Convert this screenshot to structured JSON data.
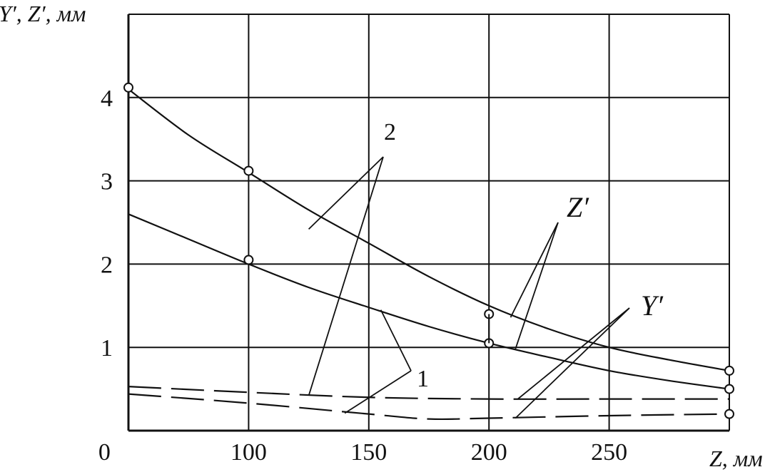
{
  "chart_data": {
    "type": "line",
    "ylabel": "Y′, Z′,  мм",
    "xlabel": "Z,  мм",
    "xlim": [
      50,
      300
    ],
    "ylim": [
      0,
      5
    ],
    "x_ticks": [
      "0",
      "100",
      "150",
      "200",
      "250"
    ],
    "y_ticks": [
      "1",
      "2",
      "3",
      "4"
    ],
    "grid": true,
    "series": [
      {
        "key": "z2",
        "style": "solid",
        "x": [
          50,
          75,
          100,
          125,
          150,
          175,
          200,
          225,
          250,
          275,
          300
        ],
        "y": [
          4.1,
          3.55,
          3.1,
          2.65,
          2.25,
          1.85,
          1.5,
          1.22,
          1.0,
          0.85,
          0.72
        ]
      },
      {
        "key": "z1",
        "style": "solid",
        "x": [
          50,
          75,
          100,
          125,
          150,
          175,
          200,
          225,
          250,
          275,
          300
        ],
        "y": [
          2.6,
          2.3,
          2.0,
          1.72,
          1.48,
          1.25,
          1.05,
          0.88,
          0.72,
          0.6,
          0.5
        ]
      },
      {
        "key": "y2",
        "style": "dashed",
        "x": [
          50,
          100,
          150,
          200,
          250,
          300
        ],
        "y": [
          0.53,
          0.46,
          0.4,
          0.38,
          0.38,
          0.38
        ]
      },
      {
        "key": "y1",
        "style": "dashed",
        "x": [
          50,
          100,
          150,
          175,
          200,
          250,
          300
        ],
        "y": [
          0.44,
          0.33,
          0.2,
          0.14,
          0.15,
          0.18,
          0.2
        ]
      }
    ],
    "markers": [
      {
        "x": 50,
        "y": 4.12
      },
      {
        "x": 100,
        "y": 3.12
      },
      {
        "x": 100,
        "y": 2.05
      },
      {
        "x": 200,
        "y": 1.4
      },
      {
        "x": 200,
        "y": 1.05
      },
      {
        "x": 300,
        "y": 0.72
      },
      {
        "x": 300,
        "y": 0.5
      },
      {
        "x": 300,
        "y": 0.2
      }
    ],
    "annotations": {
      "label_2": "2",
      "label_1": "1",
      "label_z": "Z′",
      "label_y": "Y′"
    }
  }
}
